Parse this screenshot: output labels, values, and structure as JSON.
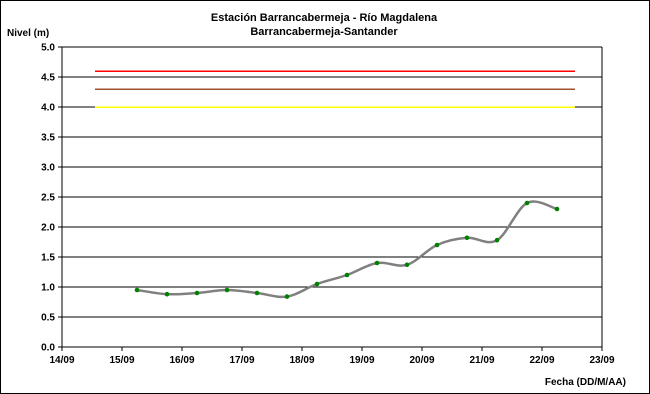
{
  "chart_data": {
    "type": "line",
    "title": "Estación Barrancabermeja - Río Magdalena",
    "subtitle": "Barrancabermeja-Santander",
    "ylabel": "Nivel (m)",
    "xlabel": "Fecha (DD/M/AA)",
    "ylim": [
      0,
      5
    ],
    "y_ticks": [
      "0.0",
      "0.5",
      "1.0",
      "1.5",
      "2.0",
      "2.5",
      "3.0",
      "3.5",
      "4.0",
      "4.5",
      "5.0"
    ],
    "x_ticks": [
      "14/09",
      "15/09",
      "16/09",
      "17/09",
      "18/09",
      "19/09",
      "20/09",
      "21/09",
      "22/09",
      "23/09"
    ],
    "xlim": [
      0,
      9
    ],
    "grid": "horizontal",
    "threshold_lines": [
      {
        "value": 4.6,
        "x_start": 0.55,
        "x_end": 8.55,
        "color": "#ff0000"
      },
      {
        "value": 4.3,
        "x_start": 0.55,
        "x_end": 8.55,
        "color": "#a0522d"
      },
      {
        "value": 4.0,
        "x_start": 0.55,
        "x_end": 8.55,
        "color": "#ffff00"
      }
    ],
    "series": [
      {
        "line_color": "#808080",
        "marker_color": "#008000",
        "x": [
          1.25,
          1.75,
          2.25,
          2.75,
          3.25,
          3.75,
          4.25,
          4.75,
          5.25,
          5.75,
          6.25,
          6.75,
          7.25,
          7.75,
          8.25
        ],
        "values": [
          0.95,
          0.88,
          0.9,
          0.95,
          0.9,
          0.84,
          1.05,
          1.2,
          1.4,
          1.37,
          1.7,
          1.82,
          1.78,
          2.4,
          2.3
        ]
      }
    ]
  }
}
